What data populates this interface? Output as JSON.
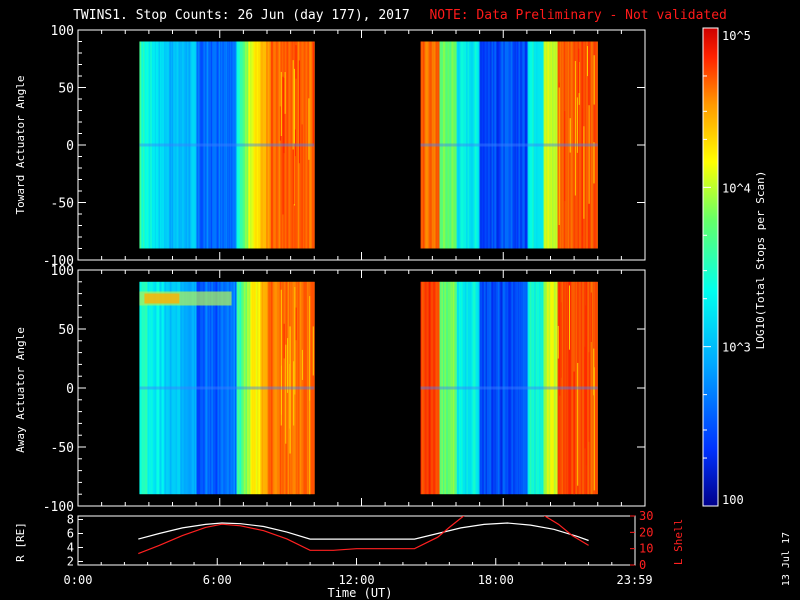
{
  "title": {
    "main": "TWINS1. Stop Counts: 26 Jun (day 177), 2017",
    "note": "NOTE: Data Preliminary - Not validated"
  },
  "datestamp": "13 Jul 17",
  "colorbar": {
    "label": "LOG10(Total Stops per Scan)",
    "ticks": [
      "10^5",
      "10^4",
      "10^3",
      "100"
    ],
    "tick_values": [
      100000,
      10000,
      1000,
      100
    ],
    "colormap": [
      "#00008b",
      "#0033ff",
      "#00aaff",
      "#00ffee",
      "#66ff66",
      "#ffff00",
      "#ff9900",
      "#ff2200",
      "#cc0000"
    ]
  },
  "chart_data": [
    {
      "type": "heatmap",
      "name": "toward",
      "ylabel": "Toward Actuator Angle",
      "ylim": [
        -100,
        100
      ],
      "yticks": [
        "100",
        "50",
        "0",
        "-50",
        "-100"
      ],
      "ytick_values": [
        100,
        50,
        0,
        -50,
        -100
      ],
      "xlim_hours": [
        0,
        24
      ],
      "data_intervals_hours": [
        [
          2.6,
          10.0
        ],
        [
          14.5,
          22.0
        ]
      ],
      "angle_range": [
        -90,
        90
      ]
    },
    {
      "type": "heatmap",
      "name": "away",
      "ylabel": "Away Actuator Angle",
      "ylim": [
        -100,
        100
      ],
      "yticks": [
        "100",
        "50",
        "0",
        "-50",
        "-100"
      ],
      "ytick_values": [
        100,
        50,
        0,
        -50,
        -100
      ],
      "xlim_hours": [
        0,
        24
      ],
      "data_intervals_hours": [
        [
          2.6,
          10.0
        ],
        [
          14.5,
          22.0
        ]
      ],
      "angle_range": [
        -90,
        90
      ]
    },
    {
      "type": "line",
      "name": "orbit",
      "ylabel_left": "R [RE]",
      "ylabel_right": "L Shell",
      "yticks_left": [
        "8",
        "6",
        "4",
        "2"
      ],
      "ytick_values_left": [
        8,
        6,
        4,
        2
      ],
      "yticks_right": [
        "30",
        "20",
        "10",
        "0"
      ],
      "ytick_values_right": [
        30,
        20,
        10,
        0
      ],
      "ylim_left": [
        1.5,
        8.5
      ],
      "ylim_right": [
        0,
        30
      ],
      "series": [
        {
          "name": "R",
          "color": "#ffffff",
          "x": [
            2.6,
            3.5,
            4.5,
            5.5,
            6.2,
            7.0,
            8.0,
            9.0,
            10.0,
            11.0,
            12.0,
            13.0,
            14.5,
            15.5,
            16.5,
            17.5,
            18.5,
            19.5,
            20.5,
            21.5,
            22.0
          ],
          "y": [
            5.2,
            6.0,
            6.8,
            7.3,
            7.5,
            7.4,
            7.0,
            6.2,
            5.2,
            5.2,
            5.2,
            5.2,
            5.2,
            6.0,
            6.8,
            7.3,
            7.5,
            7.2,
            6.6,
            5.6,
            5.0
          ]
        },
        {
          "name": "L Shell",
          "color": "#ff2020",
          "x": [
            2.6,
            3.5,
            4.5,
            5.5,
            6.2,
            7.0,
            8.0,
            9.0,
            10.0,
            11.0,
            12.0,
            13.0,
            14.5,
            15.5,
            16.0,
            16.7,
            18.0,
            20.0,
            20.7,
            21.3,
            22.0
          ],
          "y": [
            7,
            12,
            18,
            23,
            25,
            24,
            21,
            16,
            9,
            9,
            10,
            10,
            10,
            17,
            23,
            31,
            31,
            31,
            25,
            18,
            12
          ]
        }
      ],
      "xlabel": "Time (UT)",
      "xticks": [
        "0:00",
        "6:00",
        "12:00",
        "18:00",
        "23:59"
      ],
      "xtick_values": [
        0,
        6,
        12,
        18,
        23.983
      ]
    }
  ]
}
